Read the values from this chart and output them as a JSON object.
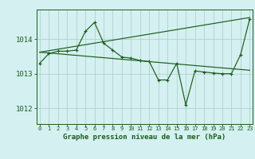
{
  "title": "Graphe pression niveau de la mer (hPa)",
  "bg_color": "#d4f0f0",
  "grid_color": "#aacccc",
  "line_color": "#1a5c1a",
  "ylim": [
    1011.55,
    1014.85
  ],
  "yticks": [
    1012,
    1013,
    1014
  ],
  "xlim": [
    -0.3,
    23.3
  ],
  "series": [
    1013.3,
    1013.58,
    1013.65,
    1013.65,
    1013.68,
    1014.22,
    1014.48,
    1013.88,
    1013.68,
    1013.48,
    1013.45,
    1013.38,
    1013.35,
    1012.82,
    1012.82,
    1013.3,
    1012.1,
    1013.08,
    1013.05,
    1013.02,
    1013.0,
    1013.0,
    1013.55,
    1014.58
  ],
  "trend1_x": [
    0,
    23
  ],
  "trend1_y": [
    1013.62,
    1014.62
  ],
  "trend2_x": [
    0,
    23
  ],
  "trend2_y": [
    1013.62,
    1013.1
  ]
}
